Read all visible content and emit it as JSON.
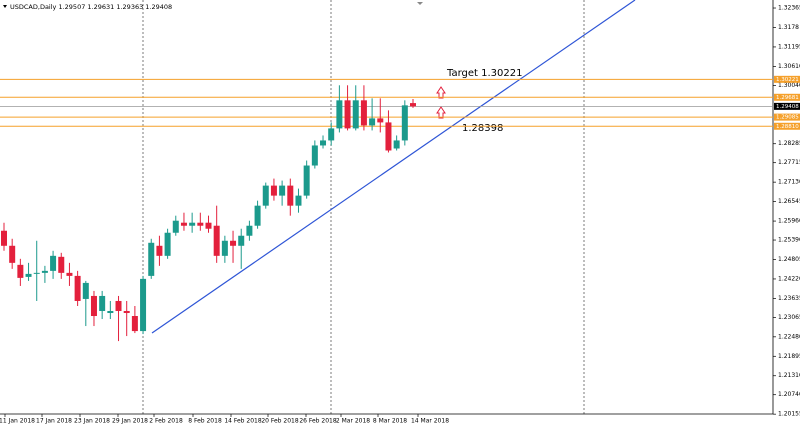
{
  "chart_data": {
    "type": "candlestick",
    "header": "USDCAD,Daily  1.29507 1.29631 1.29363 1.29408",
    "annotations": [
      "Target 1.30221",
      "1.28398"
    ],
    "up_color": "#1b9a8c",
    "down_color": "#e3203c",
    "open": [
      1.25669,
      1.25217,
      1.24644,
      1.24282,
      1.24403,
      1.24403,
      1.24463,
      1.24885,
      1.24403,
      1.24312,
      1.23619,
      1.23709,
      1.23257,
      1.23196,
      1.23558,
      1.23257,
      1.23106,
      1.22653,
      1.24312,
      1.25217,
      1.24915,
      1.25609,
      1.25911,
      1.2582,
      1.25911,
      1.25911,
      1.2582,
      1.24915,
      1.25368,
      1.25217,
      1.25519,
      1.2582,
      1.26423,
      1.27026,
      1.26725,
      1.27026,
      1.26423,
      1.26725,
      1.2763,
      1.28233,
      1.28384,
      1.28746,
      1.2959,
      1.28746,
      1.2959,
      1.28836,
      1.29047,
      1.28926,
      1.28142,
      1.28384,
      1.29507
    ],
    "high": [
      1.25911,
      1.25428,
      1.24825,
      1.24704,
      1.25368,
      1.24614,
      1.25066,
      1.25006,
      1.24704,
      1.24463,
      1.24161,
      1.2386,
      1.2386,
      1.23558,
      1.23709,
      1.23558,
      1.23407,
      1.24312,
      1.25428,
      1.25519,
      1.2573,
      1.26122,
      1.26212,
      1.26212,
      1.26212,
      1.26122,
      1.26423,
      1.25519,
      1.25669,
      1.2573,
      1.25971,
      1.26574,
      1.27117,
      1.27237,
      1.27177,
      1.27237,
      1.26936,
      1.2778,
      1.28384,
      1.28534,
      1.28926,
      1.30042,
      1.30042,
      1.30042,
      1.30042,
      1.2965,
      1.2965,
      1.29288,
      1.28534,
      1.2959,
      1.29631
    ],
    "low": [
      1.25066,
      1.24523,
      1.2401,
      1.24161,
      1.23558,
      1.24101,
      1.24222,
      1.24222,
      1.2401,
      1.23407,
      1.22804,
      1.22804,
      1.23015,
      1.23015,
      1.22352,
      1.22503,
      1.22593,
      1.22563,
      1.24222,
      1.24614,
      1.24825,
      1.25519,
      1.25669,
      1.25609,
      1.25669,
      1.25609,
      1.24704,
      1.24704,
      1.24704,
      1.24523,
      1.25368,
      1.2573,
      1.26333,
      1.26574,
      1.26423,
      1.26122,
      1.26212,
      1.26634,
      1.27539,
      1.28142,
      1.28233,
      1.28625,
      1.28685,
      1.28685,
      1.28685,
      1.28685,
      1.28625,
      1.28022,
      1.28082,
      1.28233,
      1.29363
    ],
    "close": [
      1.25217,
      1.24704,
      1.24252,
      1.24372,
      1.24403,
      1.24463,
      1.24915,
      1.24403,
      1.24312,
      1.23558,
      1.24101,
      1.23106,
      1.23709,
      1.23257,
      1.23257,
      1.23196,
      1.22653,
      1.24222,
      1.25307,
      1.24915,
      1.25609,
      1.25971,
      1.2582,
      1.25911,
      1.2582,
      1.2573,
      1.24915,
      1.25368,
      1.25217,
      1.25519,
      1.2582,
      1.26423,
      1.27026,
      1.26725,
      1.27026,
      1.26423,
      1.26725,
      1.2763,
      1.28233,
      1.28384,
      1.28746,
      1.2959,
      1.28746,
      1.2959,
      1.28836,
      1.29047,
      1.28926,
      1.28082,
      1.28384,
      1.29439,
      1.29408
    ],
    "date_labels": [
      "11 Jan 2018",
      "17 Jan 2018",
      "23 Jan 2018",
      "29 Jan 2018",
      "2 Feb 2018",
      "8 Feb 2018",
      "14 Feb 2018",
      "20 Feb 2018",
      "26 Feb 2018",
      "2 Mar 2018",
      "8 Mar 2018",
      "14 Mar 2018"
    ],
    "ylim": [
      1.2016,
      1.32606
    ],
    "yticks": [
      1.32365,
      1.3178,
      1.31195,
      {
        "value": 1.3061,
        "label": "1.30610"
      },
      {
        "value": 1.3004,
        "label": "1.30040"
      },
      1.28285,
      1.27715,
      {
        "value": 1.2713,
        "label": "1.27130"
      },
      1.26545,
      {
        "value": 1.2596,
        "label": "1.25960"
      },
      {
        "value": 1.2539,
        "label": "1.25390"
      },
      1.24805,
      {
        "value": 1.2422,
        "label": "1.24220"
      },
      1.23635,
      1.23065,
      {
        "value": 1.2248,
        "label": "1.22480"
      },
      1.21895,
      {
        "value": 1.2131,
        "label": "1.21310"
      },
      {
        "value": 1.2074,
        "label": "1.20740"
      },
      1.20155
    ],
    "levels": [
      {
        "value": 1.30221,
        "label": "1.30221"
      },
      {
        "value": 1.29681,
        "label": "1.29681"
      },
      {
        "value": 1.29085,
        "label": "1.29085"
      },
      {
        "value": 1.2881,
        "label": "1.28810"
      }
    ],
    "level_color": "#f5a02a",
    "current_price": {
      "value": 1.29408,
      "label": "1.29408"
    }
  }
}
